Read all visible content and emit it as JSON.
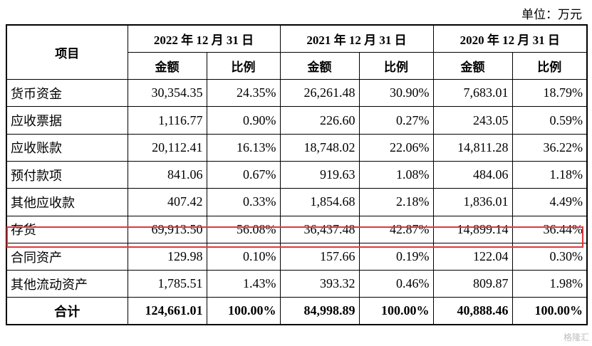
{
  "unit_label": "单位：万元",
  "header": {
    "item": "项目",
    "periods": [
      "2022 年 12 月 31 日",
      "2021 年 12 月 31 日",
      "2020 年 12 月 31 日"
    ],
    "amount": "金额",
    "ratio": "比例"
  },
  "rows": [
    {
      "label": "货币资金",
      "values": [
        "30,354.35",
        "24.35%",
        "26,261.48",
        "30.90%",
        "7,683.01",
        "18.79%"
      ]
    },
    {
      "label": "应收票据",
      "values": [
        "1,116.77",
        "0.90%",
        "226.60",
        "0.27%",
        "243.05",
        "0.59%"
      ]
    },
    {
      "label": "应收账款",
      "values": [
        "20,112.41",
        "16.13%",
        "18,748.02",
        "22.06%",
        "14,811.28",
        "36.22%"
      ]
    },
    {
      "label": "预付款项",
      "values": [
        "841.06",
        "0.67%",
        "919.63",
        "1.08%",
        "484.06",
        "1.18%"
      ]
    },
    {
      "label": "其他应收款",
      "values": [
        "407.42",
        "0.33%",
        "1,854.68",
        "2.18%",
        "1,836.01",
        "4.49%"
      ]
    },
    {
      "label": "存货",
      "values": [
        "69,913.50",
        "56.08%",
        "36,437.48",
        "42.87%",
        "14,899.14",
        "36.44%"
      ],
      "highlighted": true
    },
    {
      "label": "合同资产",
      "values": [
        "129.98",
        "0.10%",
        "157.66",
        "0.19%",
        "122.04",
        "0.30%"
      ]
    },
    {
      "label": "其他流动资产",
      "values": [
        "1,785.51",
        "1.43%",
        "393.32",
        "0.46%",
        "809.87",
        "1.98%"
      ]
    }
  ],
  "total": {
    "label": "合计",
    "values": [
      "124,661.01",
      "100.00%",
      "84,998.89",
      "100.00%",
      "40,888.46",
      "100.00%"
    ]
  },
  "highlight_color": "#e0383b",
  "watermark": "格隆汇"
}
